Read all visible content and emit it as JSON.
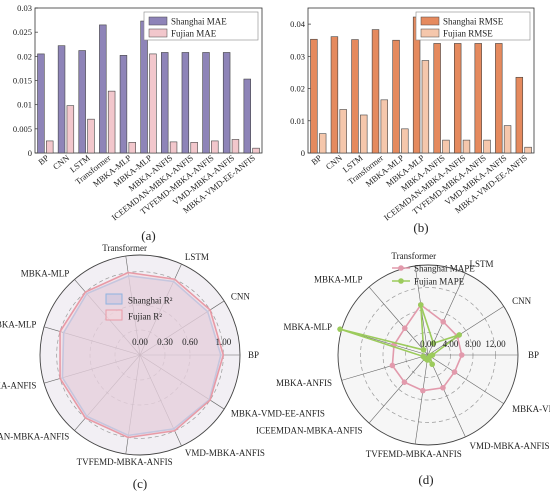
{
  "chart_data": [
    {
      "type": "bar",
      "panel_label": "(a)",
      "categories": [
        "BP",
        "CNN",
        "LSTM",
        "Transformer",
        "MBKA-MLP",
        "MBKA-MLP",
        "MBKA-ANFIS",
        "ICEEMDAN-MBKA-ANFIS",
        "TVFEMD-MBKA-ANFIS",
        "VMD-MBKA-ANFIS",
        "MBKA-VMD-EE-ANFIS"
      ],
      "series": [
        {
          "name": "Shanghai MAE",
          "color": "#8e84b8",
          "values": [
            0.0205,
            0.0222,
            0.0212,
            0.0265,
            0.0202,
            0.0273,
            0.0208,
            0.0208,
            0.0208,
            0.0208,
            0.0153
          ]
        },
        {
          "name": "Fujian MAE",
          "color": "#f2c7cc",
          "values": [
            0.0025,
            0.0098,
            0.007,
            0.0128,
            0.0022,
            0.0205,
            0.0023,
            0.0022,
            0.0025,
            0.0028,
            0.001
          ]
        }
      ],
      "ylim": [
        0,
        0.03
      ],
      "yticks": [
        "0",
        "0.005",
        "0.01",
        "0.015",
        "0.02",
        "0.025",
        "0.03"
      ],
      "legend": "top-right"
    },
    {
      "type": "bar",
      "panel_label": "(b)",
      "categories": [
        "BP",
        "CNN",
        "LSTM",
        "Transformer",
        "MBKA-MLP",
        "MBKA-MLP",
        "MBKA-ANFIS",
        "ICEEMDAN-MBKA-ANFIS",
        "TVFEMD-MBKA-ANFIS",
        "VMD-MBKA-ANFIS",
        "MBKA-VMD-EE-ANFIS"
      ],
      "series": [
        {
          "name": "Shanghai RMSE",
          "color": "#e58a5e",
          "values": [
            0.0353,
            0.0361,
            0.0352,
            0.0383,
            0.035,
            0.0422,
            0.034,
            0.034,
            0.034,
            0.034,
            0.0235
          ]
        },
        {
          "name": "Fujian RMSE",
          "color": "#f5c7ac",
          "values": [
            0.006,
            0.0135,
            0.0118,
            0.0165,
            0.0075,
            0.0287,
            0.004,
            0.004,
            0.004,
            0.0085,
            0.0018
          ]
        }
      ],
      "ylim": [
        0,
        0.045
      ],
      "yticks": [
        "0",
        "0.01",
        "0.02",
        "0.03",
        "0.04"
      ],
      "legend": "top-right"
    },
    {
      "type": "radar",
      "panel_label": "(c)",
      "axes": [
        "BP",
        "CNN",
        "LSTM",
        "Transformer",
        "MBKA-MLP",
        "MBKA-MLP",
        "MBKA-ANFIS",
        "ICEEMDAN-MBKA-ANFIS",
        "TVFEMD-MBKA-ANFIS",
        "VMD-MBKA-ANFIS",
        "MBKA-VMD-EE-ANFIS"
      ],
      "highlight_axis": "MBKA-VMD-EE-ANFIS",
      "highlight_color": "#e02020",
      "rlim": [
        0,
        1.2
      ],
      "rticks": [
        "0.00",
        "0.30",
        "0.60",
        "1.00"
      ],
      "series": [
        {
          "name": "Shanghai R²",
          "color": "#8fb3e0",
          "fill": "#c9c3dd",
          "values": [
            0.97,
            0.965,
            0.97,
            0.96,
            0.975,
            0.955,
            0.97,
            0.975,
            0.975,
            0.975,
            0.99
          ]
        },
        {
          "name": "Fujian R²",
          "color": "#e89aa6",
          "fill": "#f3d6dc",
          "values": [
            1.0,
            1.0,
            1.0,
            1.0,
            1.0,
            1.0,
            1.0,
            1.0,
            1.0,
            1.0,
            1.0
          ]
        }
      ],
      "legend": "center"
    },
    {
      "type": "radar",
      "panel_label": "(d)",
      "axes": [
        "BP",
        "CNN",
        "LSTM",
        "Transformer",
        "MBKA-MLP",
        "MBKA-MLP",
        "MBKA-ANFIS",
        "ICEEMDAN-MBKA-ANFIS",
        "TVFEMD-MBKA-ANFIS",
        "VMD-MBKA-ANFIS",
        "MBKA-VMD-EE-ANFIS"
      ],
      "highlight_axis": "MBKA-VMD-EE-ANFIS",
      "highlight_color": "#e02020",
      "rlim": [
        0,
        16
      ],
      "rticks": [
        "0.00",
        "4.00",
        "8.00",
        "12.00"
      ],
      "series": [
        {
          "name": "Shanghai MAPE",
          "color": "#e29aac",
          "values": [
            6.0,
            6.2,
            6.5,
            9.0,
            6.3,
            6.3,
            6.6,
            6.4,
            6.4,
            6.4,
            5.6
          ]
        },
        {
          "name": "Fujian MAPE",
          "color": "#9ccb5c",
          "values": [
            0.8,
            6.6,
            2.3,
            9.0,
            1.2,
            16.3,
            0.9,
            0.8,
            0.9,
            1.8,
            0.4
          ]
        }
      ],
      "legend": "top"
    }
  ]
}
